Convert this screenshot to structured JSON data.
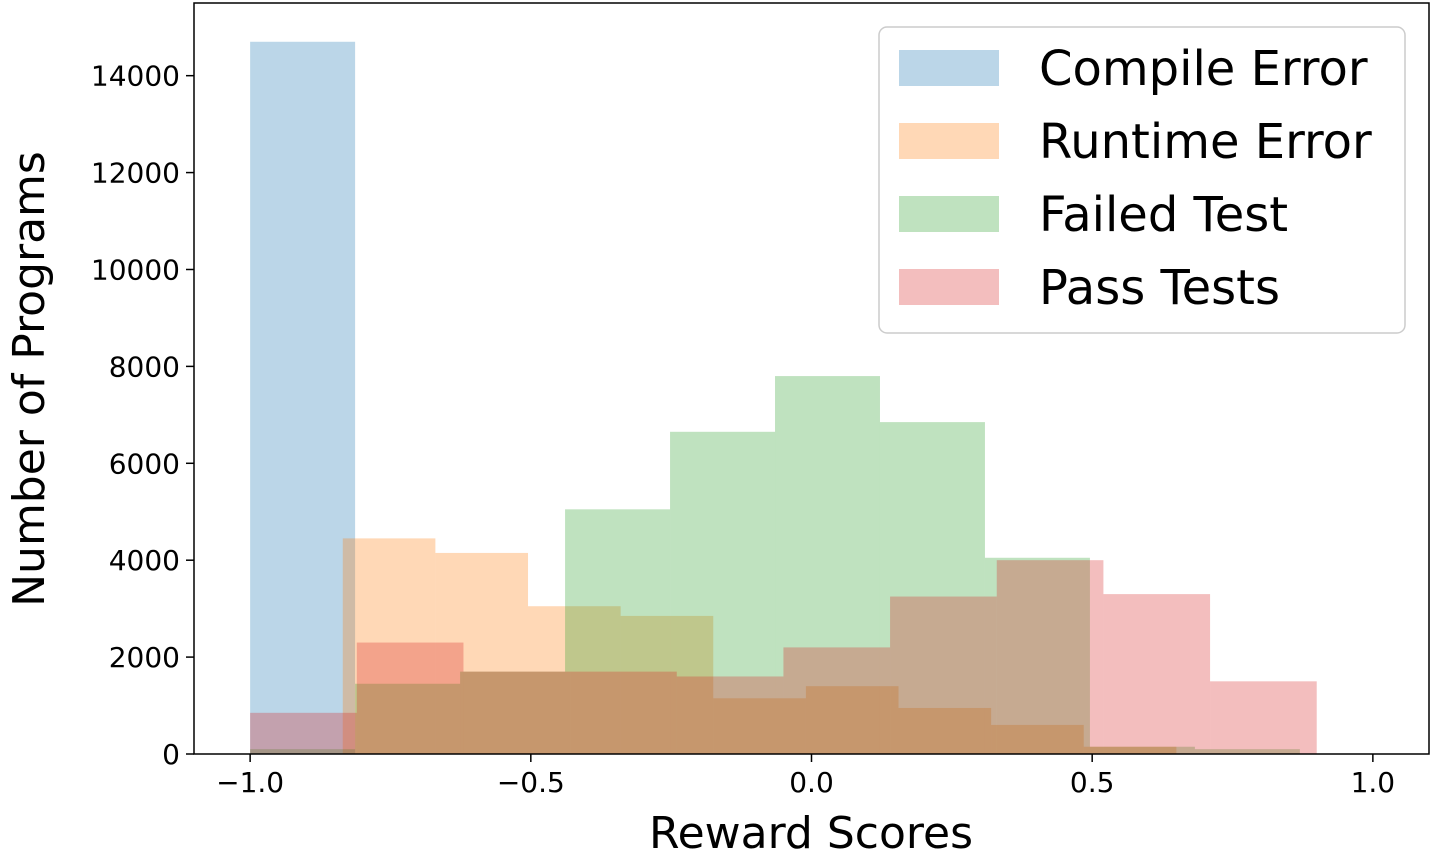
{
  "chart_data": {
    "type": "histogram",
    "title": "",
    "xlabel": "Reward Scores",
    "ylabel": "Number of Programs",
    "xlim": [
      -1.1,
      1.1
    ],
    "ylim": [
      0,
      15500
    ],
    "xticks": [
      -1.0,
      -0.5,
      0.0,
      0.5,
      1.0
    ],
    "xtick_labels": [
      "−1.0",
      "−0.5",
      "0.0",
      "0.5",
      "1.0"
    ],
    "yticks": [
      0,
      2000,
      4000,
      6000,
      8000,
      10000,
      12000,
      14000
    ],
    "ytick_labels": [
      "0",
      "2000",
      "4000",
      "6000",
      "8000",
      "10000",
      "12000",
      "14000"
    ],
    "grid": false,
    "legend_position": "top-right",
    "series": [
      {
        "name": "Compile Error",
        "color": "#1f77b4",
        "alpha": 0.3,
        "bins": [
          -1.0,
          -0.813,
          -0.626,
          -0.439,
          -0.252,
          -0.065,
          0.122,
          0.309,
          0.496,
          0.683,
          0.87
        ],
        "counts": [
          14700,
          0,
          0,
          0,
          0,
          0,
          0,
          0,
          0,
          0
        ]
      },
      {
        "name": "Runtime Error",
        "color": "#ff7f0e",
        "alpha": 0.3,
        "bins": [
          -1.0,
          -0.835,
          -0.67,
          -0.505,
          -0.34,
          -0.175,
          -0.01,
          0.155,
          0.32,
          0.485,
          0.65
        ],
        "counts": [
          0,
          4450,
          4150,
          3050,
          2850,
          1150,
          1400,
          950,
          600,
          150
        ]
      },
      {
        "name": "Failed Test",
        "color": "#2ca02c",
        "alpha": 0.3,
        "bins": [
          -1.0,
          -0.813,
          -0.626,
          -0.439,
          -0.252,
          -0.065,
          0.122,
          0.309,
          0.496,
          0.683,
          0.87
        ],
        "counts": [
          100,
          1450,
          1700,
          5050,
          6650,
          7800,
          6850,
          4050,
          150,
          100
        ]
      },
      {
        "name": "Pass Tests",
        "color": "#d62728",
        "alpha": 0.3,
        "bins": [
          -1.0,
          -0.81,
          -0.62,
          -0.43,
          -0.24,
          -0.05,
          0.14,
          0.33,
          0.52,
          0.71,
          0.9
        ],
        "counts": [
          850,
          2300,
          1700,
          1700,
          1600,
          2200,
          3250,
          4000,
          3300,
          1500
        ]
      }
    ]
  }
}
